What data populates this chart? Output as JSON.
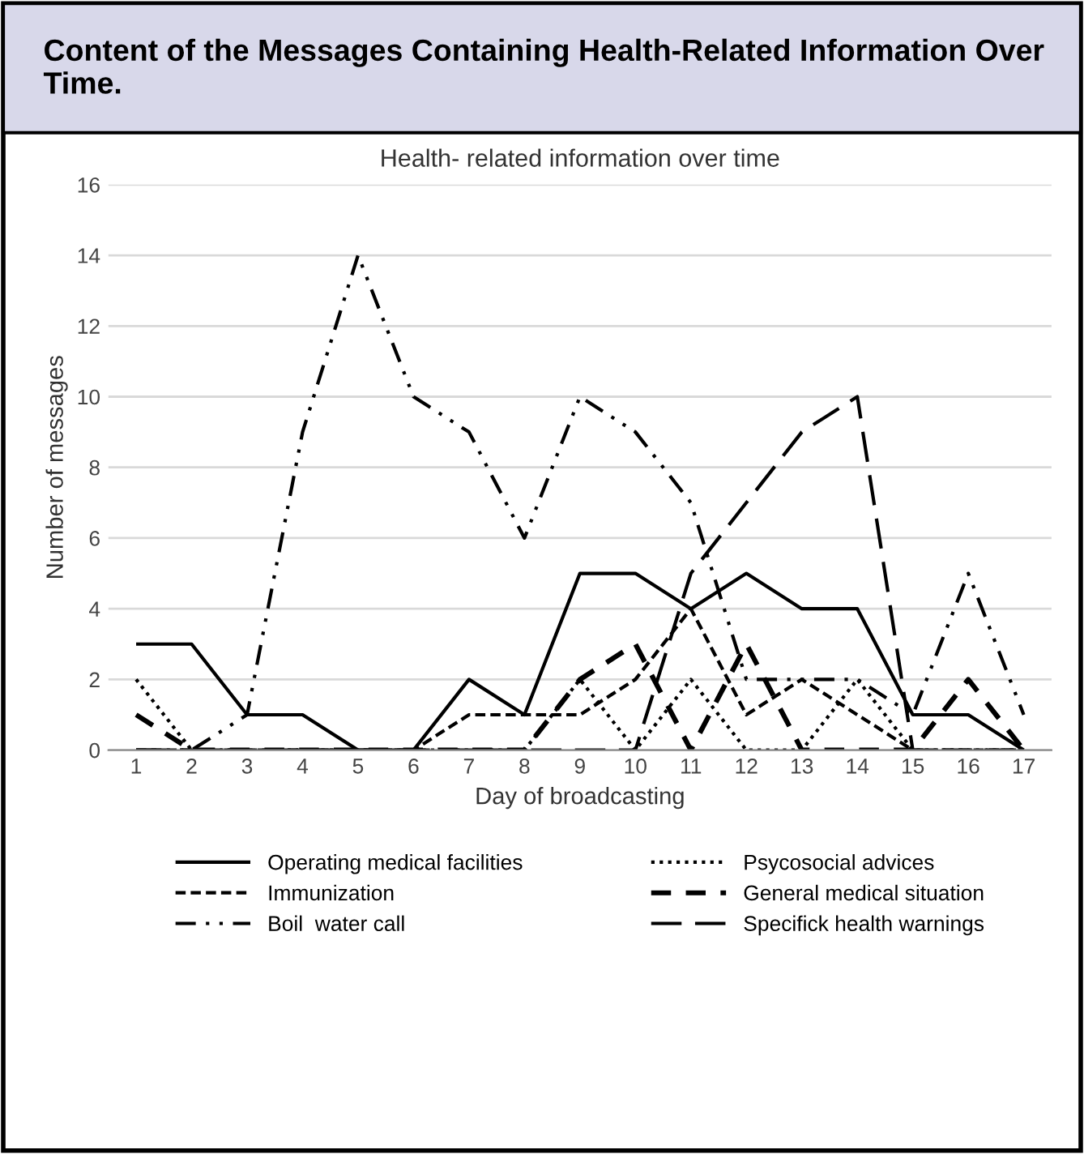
{
  "chart_data": {
    "type": "line",
    "title": "Content of the Messages Containing Health-Related Information Over Time.",
    "subtitle": "Health- related information over time",
    "xlabel": "Day of broadcasting",
    "ylabel": "Number of messages",
    "categories": [
      "1",
      "2",
      "3",
      "4",
      "5",
      "6",
      "7",
      "8",
      "9",
      "10",
      "11",
      "12",
      "13",
      "14",
      "15",
      "16",
      "17"
    ],
    "ylim": [
      0,
      16
    ],
    "yticks": [
      0,
      2,
      4,
      6,
      8,
      10,
      12,
      14,
      16
    ],
    "grid": "y",
    "legend": "bottom",
    "marker": "none",
    "series": [
      {
        "name": "Operating medical facilities",
        "color": "#000000",
        "line_style": "solid",
        "values": [
          3,
          3,
          1,
          1,
          0,
          0,
          2,
          1,
          5,
          5,
          4,
          5,
          4,
          4,
          1,
          1,
          0
        ]
      },
      {
        "name": "Immunization",
        "color": "#000000",
        "line_style": "dashed",
        "values": [
          0,
          0,
          0,
          0,
          0,
          0,
          1,
          1,
          1,
          2,
          4,
          1,
          2,
          1,
          0,
          0,
          0
        ]
      },
      {
        "name": "Boil  water call",
        "color": "#000000",
        "line_style": "dashdotdot",
        "values": [
          0,
          0,
          1,
          9,
          14,
          10,
          9,
          6,
          10,
          9,
          7,
          2,
          2,
          2,
          1,
          5,
          1
        ]
      },
      {
        "name": "Psycosocial advices",
        "color": "#000000",
        "line_style": "dotted",
        "values": [
          2,
          0,
          0,
          0,
          0,
          0,
          0,
          0,
          2,
          0,
          2,
          0,
          0,
          2,
          0,
          0,
          0
        ]
      },
      {
        "name": "General medical situation",
        "color": "#000000",
        "line_style": "heavydash",
        "values": [
          1,
          0,
          0,
          0,
          0,
          0,
          0,
          0,
          2,
          3,
          0,
          3,
          0,
          0,
          0,
          2,
          0
        ]
      },
      {
        "name": "Specifick health warnings",
        "color": "#000000",
        "line_style": "longdash",
        "values": [
          0,
          0,
          0,
          0,
          0,
          0,
          0,
          0,
          0,
          0,
          5,
          7,
          9,
          10,
          0,
          0,
          0
        ]
      }
    ]
  }
}
